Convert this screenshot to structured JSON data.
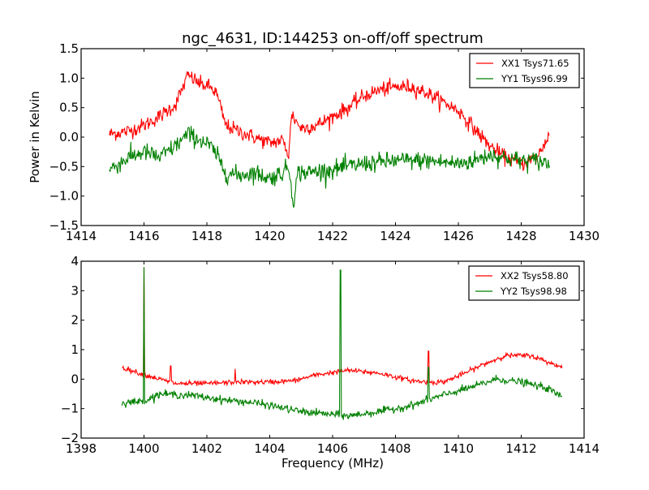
{
  "chart_data": [
    {
      "type": "line",
      "title": "ngc_4631, ID:144253 on-off/off spectrum",
      "xlabel": "",
      "ylabel": "Power in Kelvin",
      "xlim": [
        1414,
        1430
      ],
      "ylim": [
        -1.5,
        1.5
      ],
      "xticks": [
        1414,
        1416,
        1418,
        1420,
        1422,
        1424,
        1426,
        1428,
        1430
      ],
      "xtick_labels": [
        "1414",
        "1416",
        "1418",
        "1420",
        "1422",
        "1424",
        "1426",
        "1428",
        "1430"
      ],
      "yticks": [
        -1.5,
        -1.0,
        -0.5,
        0.0,
        0.5,
        1.0,
        1.5
      ],
      "ytick_labels": [
        "−1.5",
        "−1.0",
        "−0.5",
        "0.0",
        "0.5",
        "1.0",
        "1.5"
      ],
      "legend_position": "top-right",
      "grid": false,
      "x_range": [
        1414.9,
        1428.9
      ],
      "series": [
        {
          "name": "XX1 Tsys71.65",
          "color": "#ff0000",
          "noise": 0.09,
          "shape_x": [
            1414.9,
            1415.5,
            1416.0,
            1416.5,
            1417.0,
            1417.4,
            1417.8,
            1418.1,
            1418.3,
            1418.6,
            1419.0,
            1419.5,
            1420.0,
            1420.4,
            1420.6,
            1420.7,
            1420.8,
            1421.0,
            1421.5,
            1422.0,
            1422.5,
            1423.0,
            1423.5,
            1424.0,
            1424.5,
            1425.0,
            1425.5,
            1426.0,
            1426.5,
            1427.0,
            1427.5,
            1428.0,
            1428.5,
            1428.9
          ],
          "shape_y": [
            0.05,
            0.1,
            0.2,
            0.35,
            0.55,
            1.05,
            0.9,
            0.85,
            0.75,
            0.2,
            0.1,
            0.0,
            -0.1,
            -0.05,
            -0.3,
            0.4,
            0.3,
            0.15,
            0.2,
            0.35,
            0.5,
            0.7,
            0.8,
            0.85,
            0.85,
            0.75,
            0.6,
            0.45,
            0.15,
            -0.15,
            -0.35,
            -0.45,
            -0.35,
            0.05
          ]
        },
        {
          "name": "YY1 Tsys96.99",
          "color": "#008000",
          "noise": 0.11,
          "shape_x": [
            1414.9,
            1415.5,
            1416.0,
            1416.5,
            1417.0,
            1417.4,
            1417.8,
            1418.1,
            1418.3,
            1418.6,
            1419.0,
            1419.5,
            1420.0,
            1420.4,
            1420.6,
            1420.75,
            1420.9,
            1421.2,
            1422.0,
            1423.0,
            1424.0,
            1425.0,
            1426.0,
            1426.5,
            1427.0,
            1427.5,
            1428.0,
            1428.5,
            1428.9
          ],
          "shape_y": [
            -0.55,
            -0.35,
            -0.25,
            -0.35,
            -0.15,
            0.05,
            -0.05,
            -0.15,
            -0.3,
            -0.6,
            -0.65,
            -0.6,
            -0.7,
            -0.6,
            -0.5,
            -1.1,
            -0.6,
            -0.6,
            -0.55,
            -0.45,
            -0.4,
            -0.4,
            -0.45,
            -0.4,
            -0.3,
            -0.35,
            -0.4,
            -0.4,
            -0.45
          ]
        }
      ]
    },
    {
      "type": "line",
      "title": "",
      "xlabel": "Frequency (MHz)",
      "ylabel": "",
      "xlim": [
        1398,
        1414
      ],
      "ylim": [
        -2,
        4
      ],
      "xticks": [
        1398,
        1400,
        1402,
        1404,
        1406,
        1408,
        1410,
        1412,
        1414
      ],
      "xtick_labels": [
        "1398",
        "1400",
        "1402",
        "1404",
        "1406",
        "1408",
        "1410",
        "1412",
        "1414"
      ],
      "yticks": [
        -2,
        -1,
        0,
        1,
        2,
        3,
        4
      ],
      "ytick_labels": [
        "−2",
        "−1",
        "0",
        "1",
        "2",
        "3",
        "4"
      ],
      "legend_position": "top-right",
      "grid": false,
      "x_range": [
        1399.3,
        1413.3
      ],
      "series": [
        {
          "name": "XX2 Tsys58.80",
          "color": "#ff0000",
          "noise": 0.06,
          "shape_x": [
            1399.3,
            1400.0,
            1401.0,
            1402.0,
            1403.0,
            1404.0,
            1404.8,
            1405.5,
            1406.5,
            1407.5,
            1408.5,
            1409.0,
            1409.5,
            1410.0,
            1410.8,
            1411.5,
            1412.3,
            1412.8,
            1413.3
          ],
          "shape_y": [
            0.4,
            0.15,
            -0.15,
            -0.15,
            -0.1,
            -0.1,
            -0.05,
            0.15,
            0.3,
            0.2,
            -0.05,
            -0.1,
            -0.1,
            0.1,
            0.5,
            0.8,
            0.8,
            0.6,
            0.4
          ],
          "spikes": [
            [
              1400.0,
              3.8
            ],
            [
              1400.85,
              0.45
            ],
            [
              1402.9,
              0.35
            ],
            [
              1409.05,
              0.95
            ]
          ]
        },
        {
          "name": "YY2 Tsys98.98",
          "color": "#008000",
          "noise": 0.09,
          "shape_x": [
            1399.3,
            1400.0,
            1400.5,
            1401.5,
            1402.5,
            1403.5,
            1404.3,
            1405.0,
            1406.0,
            1406.5,
            1407.5,
            1408.5,
            1409.5,
            1410.5,
            1411.2,
            1412.0,
            1412.8,
            1413.3
          ],
          "shape_y": [
            -0.8,
            -0.75,
            -0.5,
            -0.55,
            -0.7,
            -0.8,
            -0.95,
            -1.1,
            -1.2,
            -1.25,
            -1.1,
            -0.9,
            -0.55,
            -0.25,
            0.0,
            -0.1,
            -0.3,
            -0.6
          ],
          "spikes": [
            [
              1400.0,
              3.8
            ],
            [
              1406.25,
              3.7
            ],
            [
              1409.05,
              0.4
            ]
          ]
        }
      ]
    }
  ]
}
